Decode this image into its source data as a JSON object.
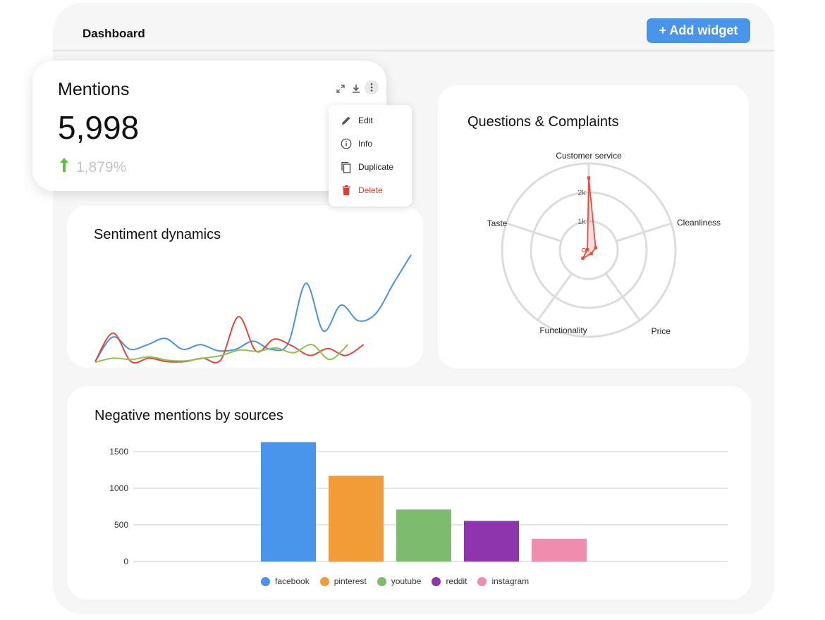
{
  "header": {
    "title": "Dashboard",
    "add_widget_label": "+ Add widget"
  },
  "mentions_card": {
    "title": "Mentions",
    "value": "5,998",
    "change": "1,879%",
    "trend_color": "#5ac43d",
    "tool_icons": [
      "expand-icon",
      "download-icon",
      "more-icon"
    ]
  },
  "context_menu": {
    "items": [
      {
        "label": "Edit",
        "icon": "pencil-icon"
      },
      {
        "label": "Info",
        "icon": "info-icon"
      },
      {
        "label": "Duplicate",
        "icon": "copy-icon"
      },
      {
        "label": "Delete",
        "icon": "trash-icon",
        "color": "#e53935"
      }
    ]
  },
  "sentiment_card": {
    "title": "Sentiment dynamics"
  },
  "questions_card": {
    "title": "Questions & Complaints"
  },
  "negative_card": {
    "title": "Negative mentions by sources"
  },
  "chart_data": [
    {
      "type": "line",
      "title": "Sentiment dynamics",
      "xlabel": "",
      "ylabel": "",
      "series": [
        {
          "color": "#4a90e2",
          "values": [
            5,
            41,
            23,
            30,
            39,
            23,
            30,
            21,
            23,
            35,
            23,
            32,
            120,
            50,
            88,
            65,
            76,
            120,
            162
          ]
        },
        {
          "color": "#e0473a",
          "values": [
            5,
            47,
            5,
            10,
            5,
            5,
            10,
            7,
            71,
            20,
            38,
            28,
            14,
            24,
            14,
            30
          ]
        },
        {
          "color": "#8bc34a",
          "values": [
            4,
            10,
            8,
            12,
            7,
            6,
            10,
            14,
            22,
            20,
            25,
            18,
            30,
            8,
            30
          ]
        }
      ],
      "ylim": [
        0,
        170
      ]
    },
    {
      "type": "radar",
      "title": "Questions & Complaints",
      "categories": [
        "Customer service",
        "Cleanliness",
        "Price",
        "Functionality",
        "Taste"
      ],
      "values": [
        2500,
        250,
        150,
        350,
        50
      ],
      "ticks": [
        "1k",
        "2k"
      ],
      "rmax": 3000,
      "color": "#e74c3c"
    },
    {
      "type": "bar",
      "title": "Negative mentions by sources",
      "categories": [
        "facebook",
        "pinterest",
        "youtube",
        "reddit",
        "instagram"
      ],
      "values": [
        1630,
        1170,
        710,
        555,
        310
      ],
      "colors": [
        "#4a95ec",
        "#f29c38",
        "#7dbb6f",
        "#8e35ad",
        "#f08cae"
      ],
      "yticks": [
        "1500",
        "1000",
        "500",
        "0"
      ],
      "ylim": [
        0,
        1700
      ]
    }
  ]
}
